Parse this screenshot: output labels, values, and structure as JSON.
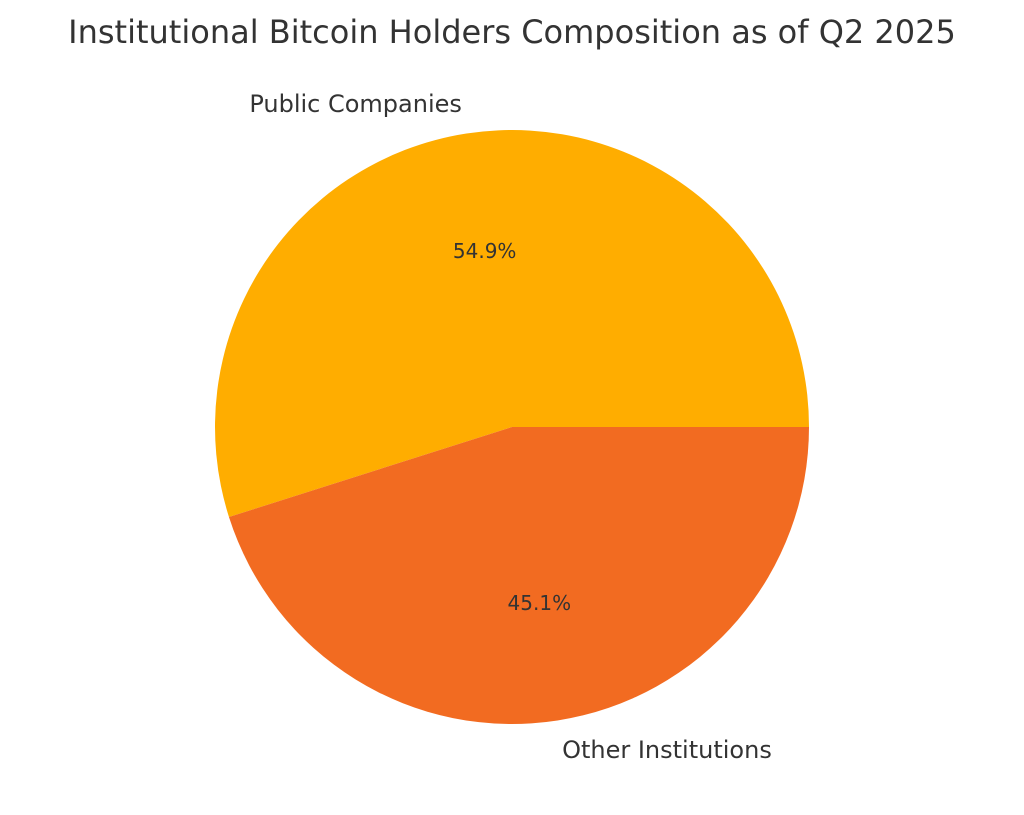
{
  "chart_data": {
    "type": "pie",
    "title": "Institutional Bitcoin Holders Composition as of Q2 2025",
    "slices": [
      {
        "label": "Public Companies",
        "value": 54.9,
        "pct_label": "54.9%",
        "color": "#ffad00"
      },
      {
        "label": "Other Institutions",
        "value": 45.1,
        "pct_label": "45.1%",
        "color": "#f26b21"
      }
    ],
    "start_angle_deg": 0,
    "direction": "counterclockwise",
    "legend": "none"
  }
}
